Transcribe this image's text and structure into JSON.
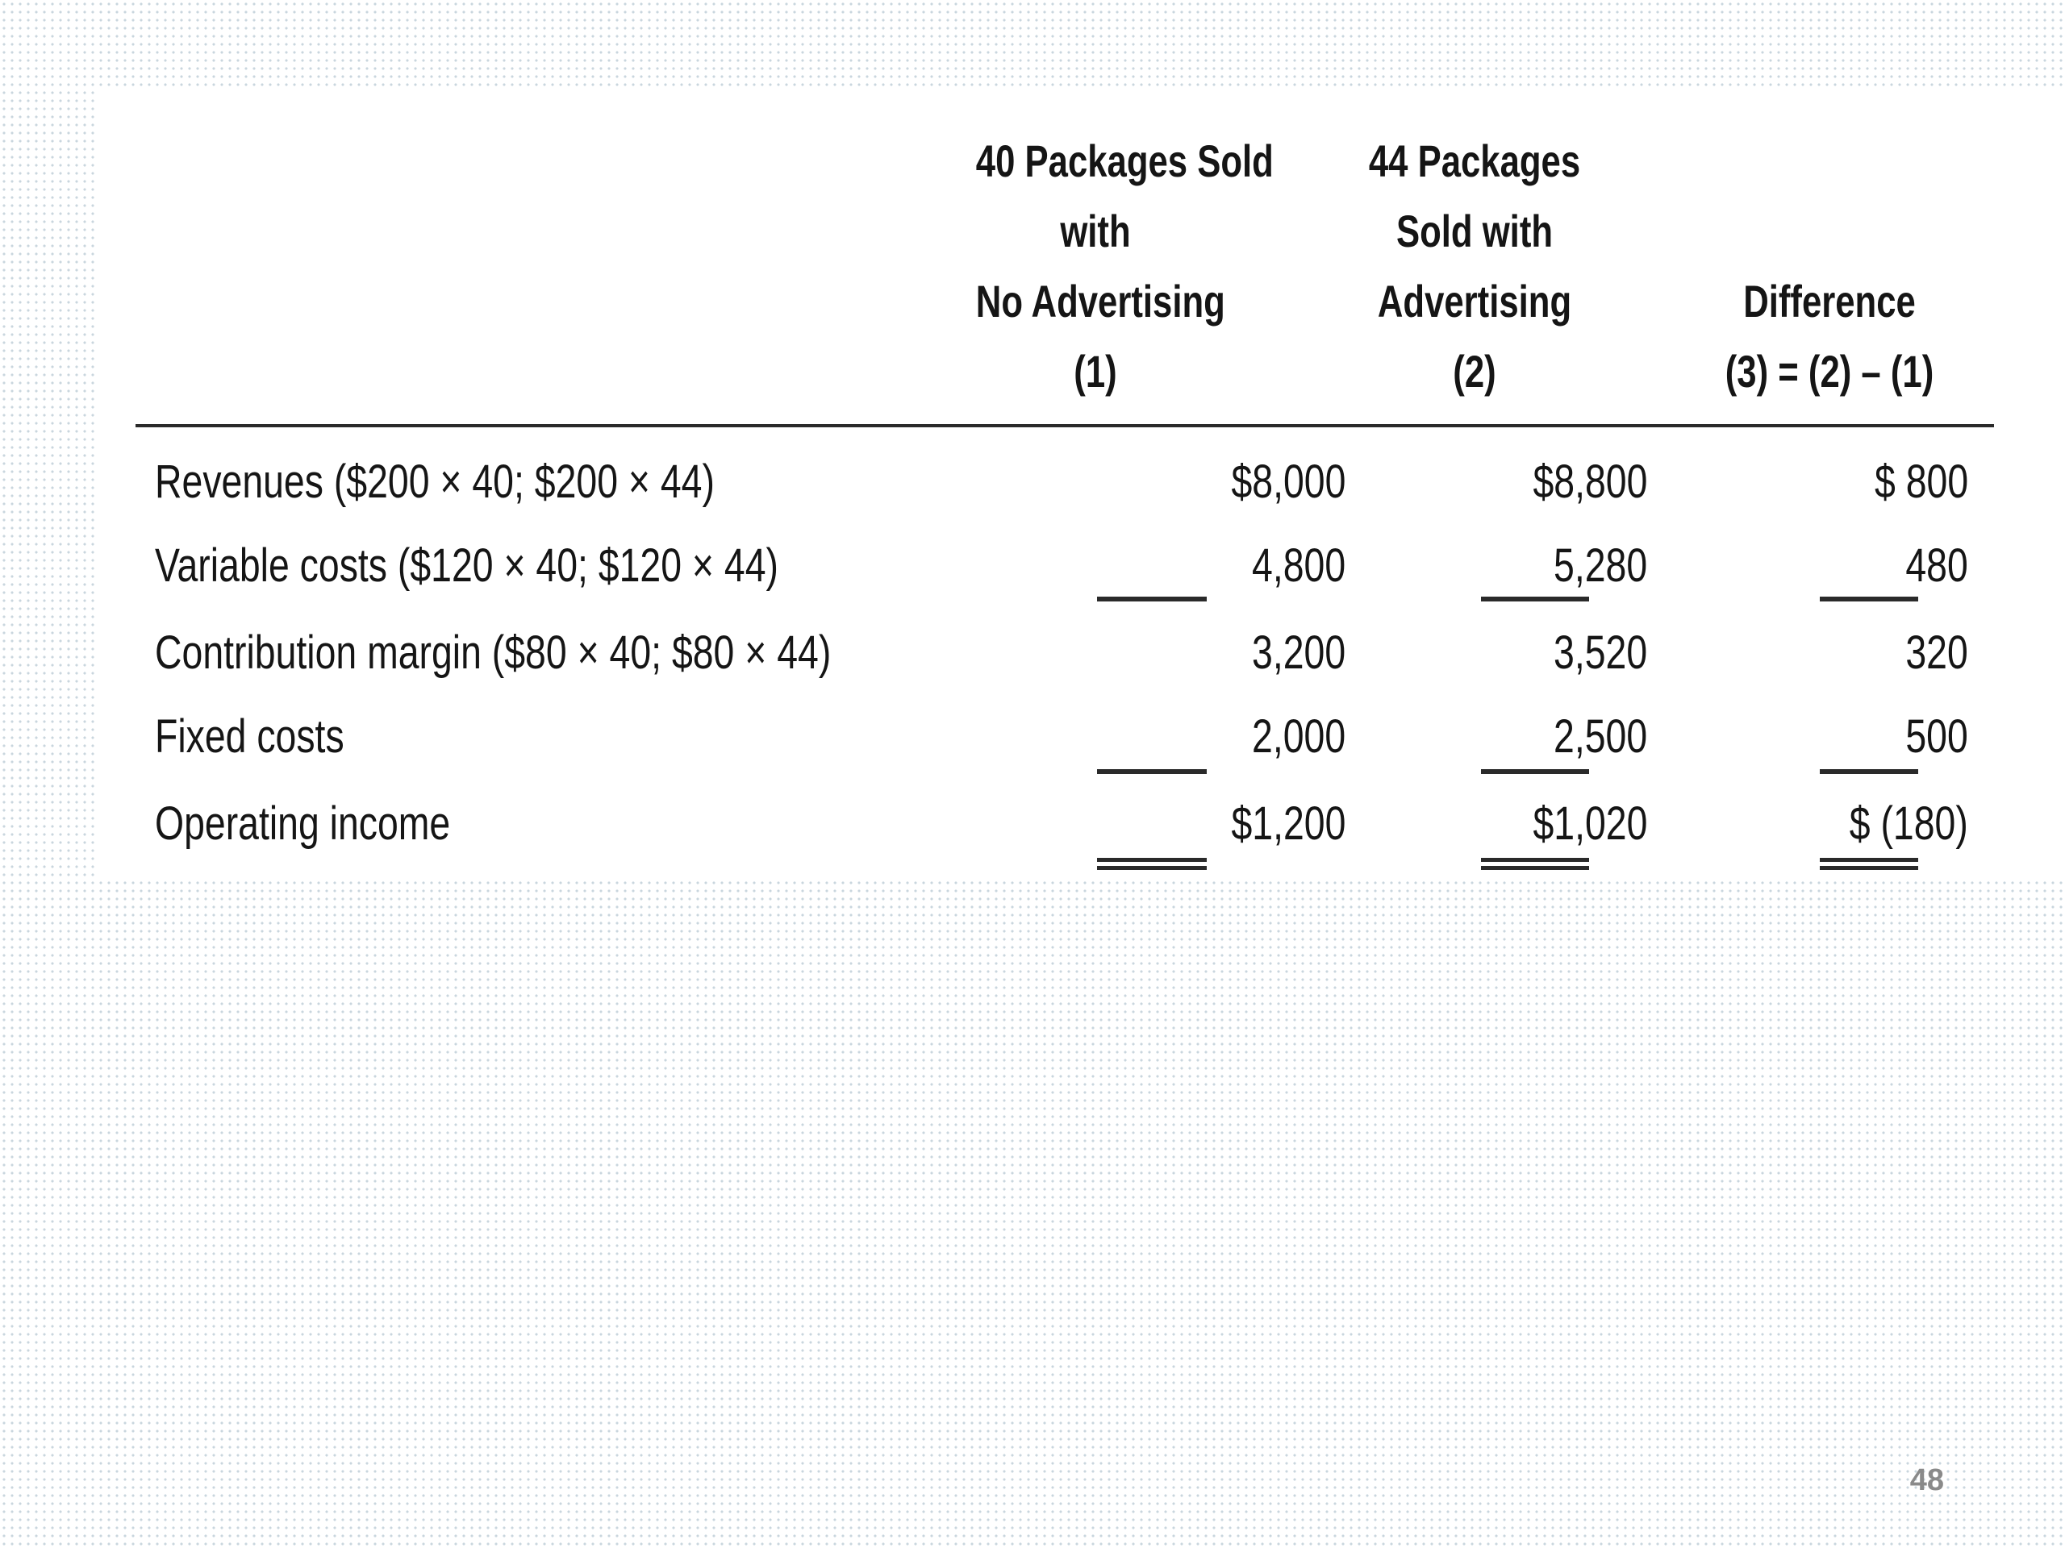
{
  "table": {
    "columns": [
      {
        "lines": [
          "40 Packages Sold",
          "with",
          "No Advertising",
          "(1)"
        ]
      },
      {
        "lines": [
          "44 Packages",
          "Sold with",
          "Advertising",
          "(2)"
        ]
      },
      {
        "lines": [
          "Difference",
          "(3) = (2) – (1)"
        ]
      }
    ],
    "rows": [
      {
        "label": "Revenues ($200 × 40; $200 × 44)",
        "values": [
          "$8,000",
          "$8,800",
          "$ 800"
        ]
      },
      {
        "label": "Variable costs ($120 × 40; $120 × 44)",
        "values": [
          "4,800",
          "5,280",
          "480"
        ]
      },
      {
        "label": "Contribution margin ($80 × 40; $80 × 44)",
        "values": [
          "3,200",
          "3,520",
          "320"
        ]
      },
      {
        "label": "Fixed costs",
        "values": [
          "2,000",
          "2,500",
          "500"
        ]
      },
      {
        "label": "Operating income",
        "values": [
          "$1,200",
          "$1,020",
          "$ (180)"
        ]
      }
    ]
  },
  "page_number": "48"
}
